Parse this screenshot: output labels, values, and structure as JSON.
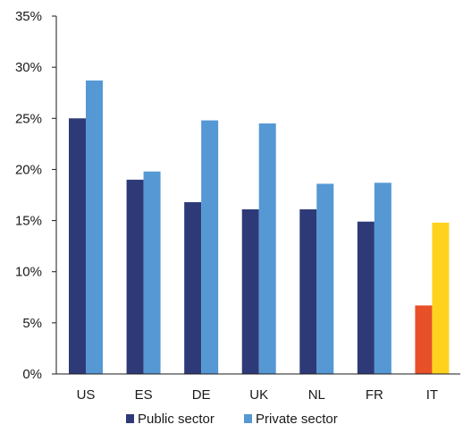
{
  "chart_data": {
    "type": "bar",
    "categories": [
      "US",
      "ES",
      "DE",
      "UK",
      "NL",
      "FR",
      "IT"
    ],
    "series": [
      {
        "name": "Public sector",
        "values": [
          25.0,
          19.0,
          16.8,
          16.1,
          16.1,
          14.9,
          6.7
        ]
      },
      {
        "name": "Private sector",
        "values": [
          28.7,
          19.8,
          24.8,
          24.5,
          18.6,
          18.7,
          14.8
        ]
      }
    ],
    "ylim": [
      0,
      35
    ],
    "yticks": [
      0,
      5,
      10,
      15,
      20,
      25,
      30,
      35
    ],
    "ytick_suffix": "%",
    "grid": false,
    "legend_position": "bottom",
    "colors": {
      "public": "#2e3a78",
      "private": "#5598d4",
      "highlight_public": "#e8502a",
      "highlight_private": "#ffd21e",
      "axis": "#1a1a1a"
    },
    "highlight_category": "IT"
  }
}
